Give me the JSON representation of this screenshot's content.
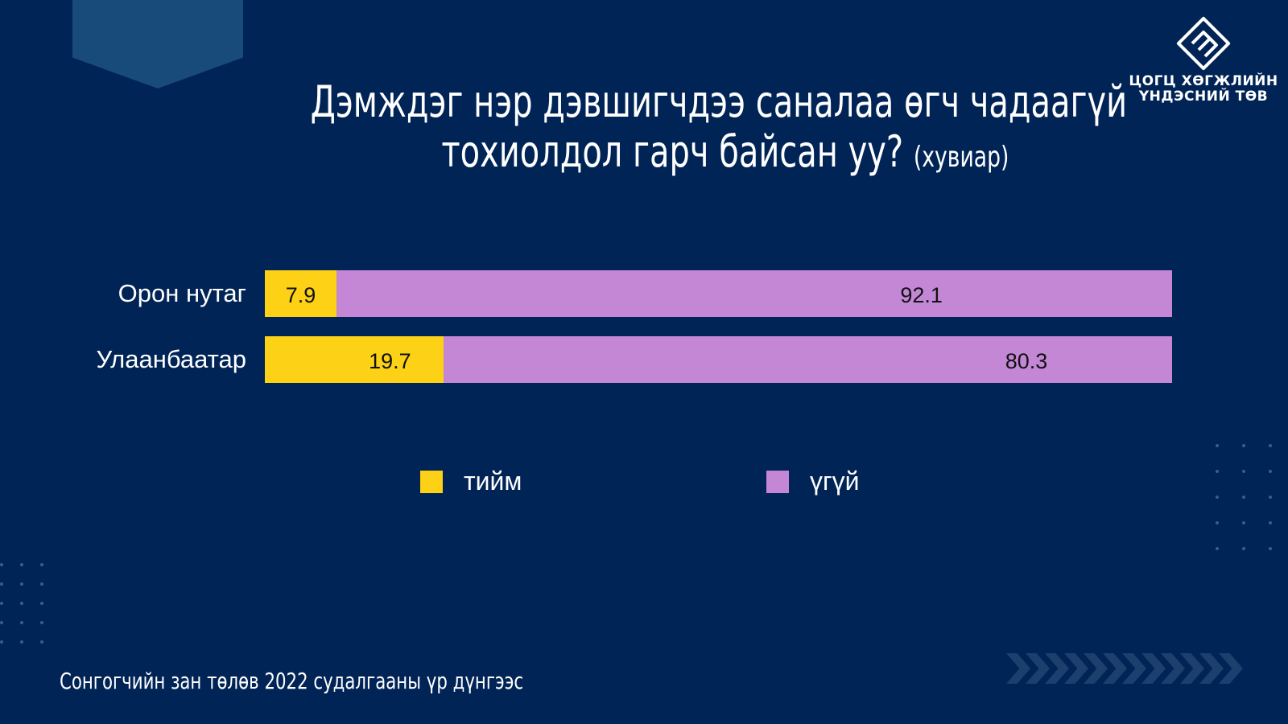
{
  "title": {
    "line1": "Дэмждэг нэр дэвшигчдээ саналаа өгч чадаагүй",
    "line2": "тохиолдол гарч байсан уу?",
    "unit": "(хувиар)"
  },
  "logo": {
    "line1": "ЦОГЦ ХӨГЖЛИЙН",
    "line2": "ҮНДЭСНИЙ ТӨВ"
  },
  "source": "Сонгогчийн зан төлөв 2022 судалгааны үр дүнгээс",
  "colors": {
    "background": "#012456",
    "yes": "#FCD116",
    "no": "#C487D5"
  },
  "chart_data": {
    "type": "bar",
    "orientation": "horizontal",
    "stacked": true,
    "categories": [
      "Орон нутаг",
      "Улаанбаатар"
    ],
    "series": [
      {
        "name": "тийм",
        "values": [
          7.9,
          19.7
        ],
        "color": "#FCD116"
      },
      {
        "name": "үгүй",
        "values": [
          92.1,
          80.3
        ],
        "color": "#C487D5"
      }
    ],
    "xlim": [
      0,
      100
    ],
    "grid": false,
    "legend": "bottom"
  }
}
